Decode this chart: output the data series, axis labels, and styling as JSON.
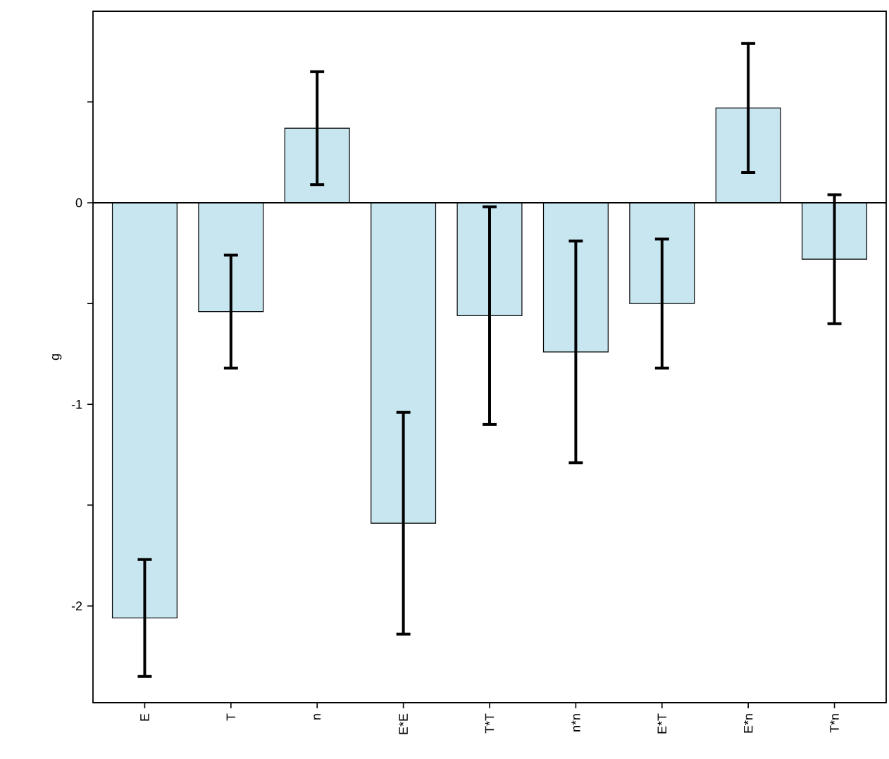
{
  "chart_data": {
    "type": "bar",
    "ylabel": "g",
    "categories": [
      "E",
      "T",
      "n",
      "E*E",
      "T*T",
      "n*n",
      "E*T",
      "E*n",
      "T*n"
    ],
    "values": [
      -2.06,
      -0.54,
      0.37,
      -1.59,
      -0.56,
      -0.74,
      -0.5,
      0.47,
      -0.28
    ],
    "errors": [
      0.29,
      0.28,
      0.28,
      0.55,
      0.54,
      0.55,
      0.32,
      0.32,
      0.32
    ],
    "color": "#c8e6f0",
    "ylim": [
      -2.48,
      0.95
    ],
    "yticks": [
      -2,
      {
        "value": -1.5,
        "label": null
      },
      -1,
      {
        "value": -0.5,
        "label": null
      },
      0,
      {
        "value": 0.5,
        "label": null
      }
    ]
  }
}
